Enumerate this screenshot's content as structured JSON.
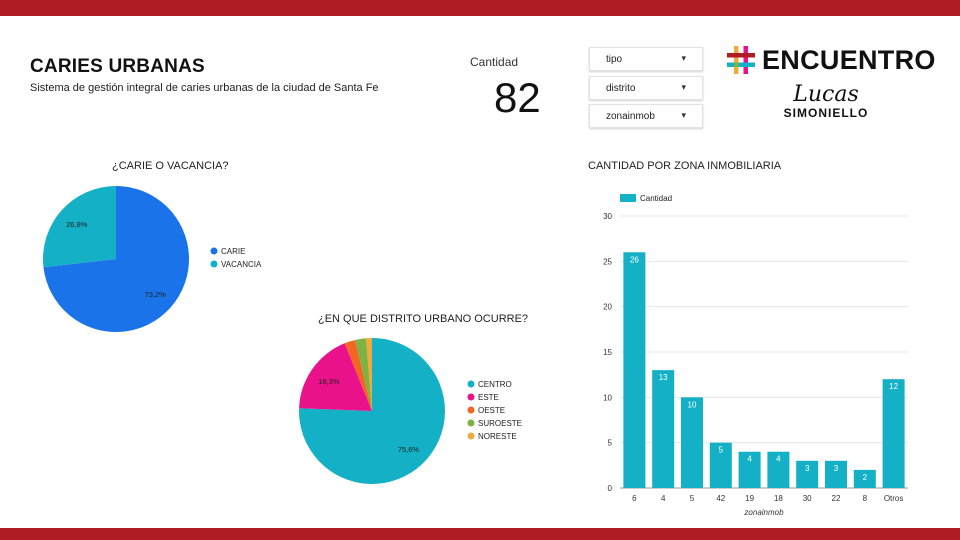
{
  "header": {
    "title": "CARIES URBANAS",
    "subtitle": "Sistema de gestión integral de caries urbanas de la ciudad de Santa Fe"
  },
  "kpi": {
    "label": "Cantidad",
    "value": "82"
  },
  "filters": [
    {
      "label": "tipo"
    },
    {
      "label": "distrito"
    },
    {
      "label": "zonainmob"
    }
  ],
  "logos": {
    "encuentro": "ENCUENTRO",
    "lucas_script": "Lucas",
    "lucas_caps": "SIMONIELLO"
  },
  "colors": {
    "band": "#b01c24",
    "blue": "#1a73e8",
    "teal": "#14b0c6",
    "pink": "#e9128a",
    "orange": "#f26522",
    "green": "#7cb342",
    "yellow": "#f2a93b",
    "grid": "#e6e6e6"
  },
  "chart_data": [
    {
      "type": "pie",
      "title": "¿CARIE O VACANCIA?",
      "labels": [
        "CARIE",
        "VACANCIA"
      ],
      "values": [
        73.2,
        26.8
      ],
      "value_labels": [
        "73,2%",
        "26,8%"
      ],
      "colors": [
        "#1a73e8",
        "#14b0c6"
      ],
      "legend": "right"
    },
    {
      "type": "pie",
      "title": "¿EN QUE DISTRITO URBANO OCURRE?",
      "labels": [
        "CENTRO",
        "ESTE",
        "OESTE",
        "SUROESTE",
        "NORESTE"
      ],
      "values": [
        75.6,
        18.3,
        2.4,
        2.4,
        1.3
      ],
      "value_labels": [
        "75,6%",
        "18,3%",
        "",
        "",
        ""
      ],
      "colors": [
        "#14b0c6",
        "#e9128a",
        "#f26522",
        "#7cb342",
        "#f2a93b"
      ],
      "legend": "right"
    },
    {
      "type": "bar",
      "title": "CANTIDAD POR ZONA INMOBILIARIA",
      "categories": [
        "6",
        "4",
        "5",
        "42",
        "19",
        "18",
        "30",
        "22",
        "8",
        "Otros"
      ],
      "series": [
        {
          "name": "Cantidad",
          "values": [
            26,
            13,
            10,
            5,
            4,
            4,
            3,
            3,
            2,
            12
          ]
        }
      ],
      "xlabel": "zonainmob",
      "ylabel": "",
      "ylim": [
        0,
        30
      ],
      "yticks": [
        "0",
        "5",
        "10",
        "15",
        "20",
        "25",
        "30"
      ],
      "grid": true,
      "legend": "top-left",
      "color": "#14b0c6"
    }
  ]
}
